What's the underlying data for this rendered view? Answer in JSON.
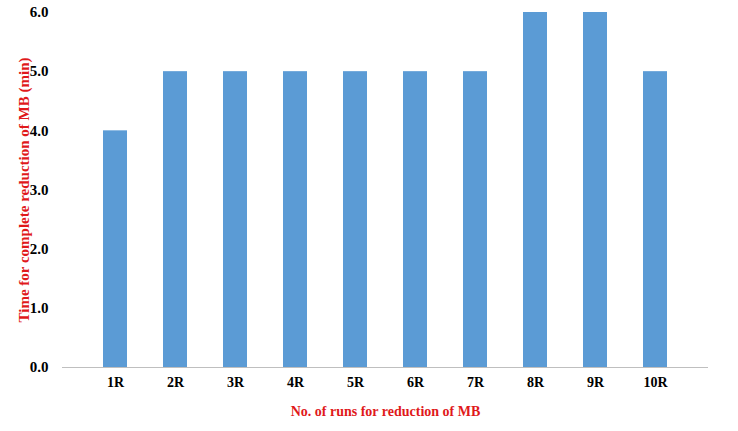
{
  "chart_data": {
    "type": "bar",
    "xlabel": "No. of runs for reduction of MB",
    "ylabel": "Time for complete reduction of MB (min)",
    "categories": [
      "1R",
      "2R",
      "3R",
      "4R",
      "5R",
      "6R",
      "7R",
      "8R",
      "9R",
      "10R"
    ],
    "values": [
      4,
      5,
      5,
      5,
      5,
      5,
      5,
      6,
      6,
      5
    ],
    "color": "#5b9bd5",
    "ylim": [
      0,
      6
    ],
    "yticks": [
      0,
      1,
      2,
      3,
      4,
      5,
      6
    ],
    "grid": false
  }
}
